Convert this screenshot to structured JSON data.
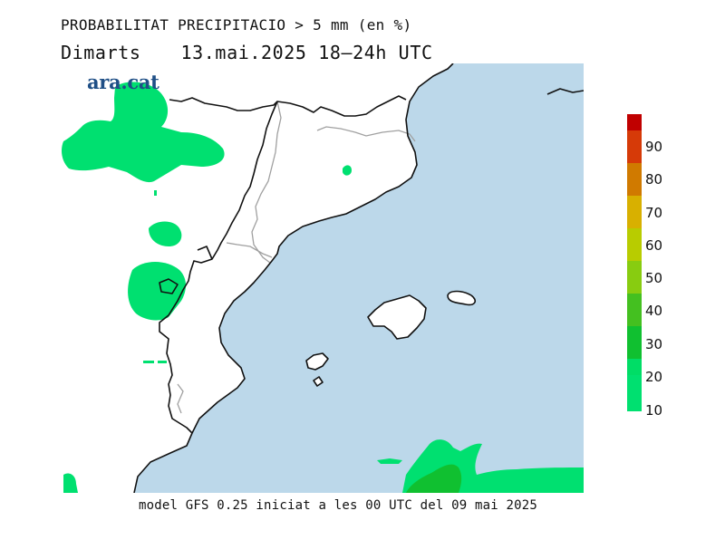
{
  "header": {
    "line1": "PROBABILITAT PRECIPITACIO > 5 mm (en %)",
    "day": "Dimarts",
    "datetime": "13.mai.2025 18–24h UTC"
  },
  "logo": {
    "text": "ara.cat"
  },
  "footer": {
    "text": "model GFS 0.25 iniciat a les 00 UTC del 09 mai 2025"
  },
  "legend": {
    "ticks": [
      "90",
      "80",
      "70",
      "60",
      "50",
      "40",
      "30",
      "20",
      "10"
    ],
    "colors": [
      "#c00000",
      "#d63a08",
      "#d07a00",
      "#d8b000",
      "#b8cc00",
      "#88cc10",
      "#44c020",
      "#10c030",
      "#00dd66",
      "#00e070"
    ]
  },
  "colors": {
    "sea": "#bcd8ea",
    "land": "#ffffff",
    "prob_10": "#00e070",
    "prob_20": "#10c030",
    "coast": "#111111",
    "borders": "#a0a0a0"
  }
}
